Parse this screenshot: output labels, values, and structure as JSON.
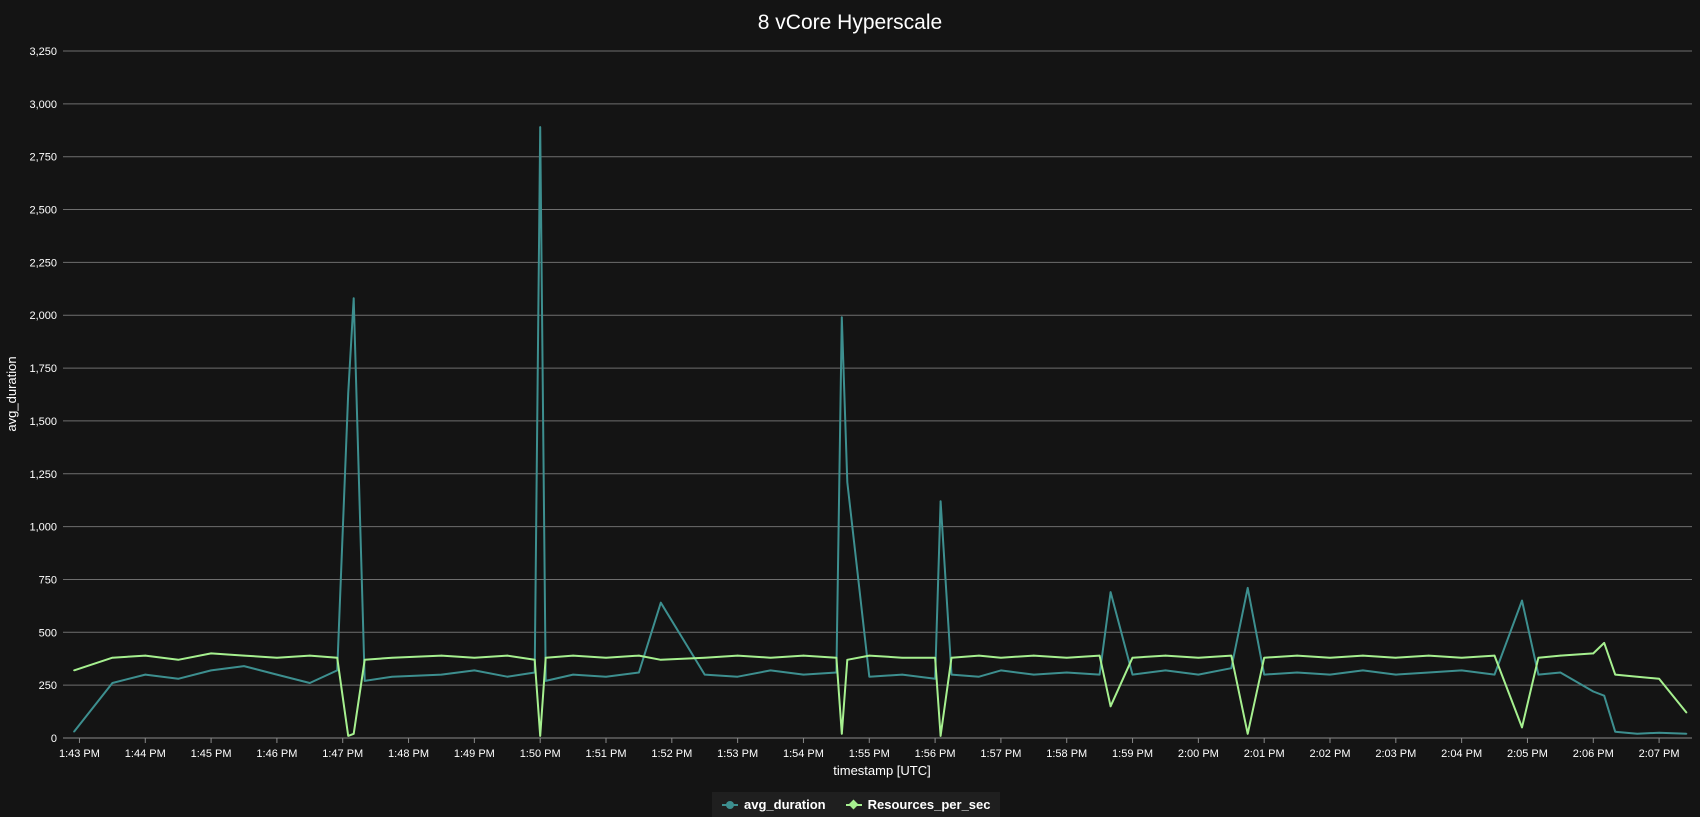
{
  "chart_data": {
    "type": "line",
    "title": "8 vCore Hyperscale",
    "xlabel": "timestamp [UTC]",
    "ylabel": "avg_duration",
    "ylim": [
      0,
      3250
    ],
    "yticks": [
      0,
      250,
      500,
      750,
      1000,
      1250,
      1500,
      1750,
      2000,
      2250,
      2500,
      2750,
      3000,
      3250
    ],
    "ytick_labels": [
      "0",
      "250",
      "500",
      "750",
      "1,000",
      "1,250",
      "1,500",
      "1,750",
      "2,000",
      "2,250",
      "2,500",
      "2,750",
      "3,000",
      "3,250"
    ],
    "xlim": [
      "1:42:45 PM",
      "2:07:30 PM"
    ],
    "xtick_labels": [
      "1:43 PM",
      "1:44 PM",
      "1:45 PM",
      "1:46 PM",
      "1:47 PM",
      "1:48 PM",
      "1:49 PM",
      "1:50 PM",
      "1:51 PM",
      "1:52 PM",
      "1:53 PM",
      "1:54 PM",
      "1:55 PM",
      "1:56 PM",
      "1:57 PM",
      "1:58 PM",
      "1:59 PM",
      "2:00 PM",
      "2:01 PM",
      "2:02 PM",
      "2:03 PM",
      "2:04 PM",
      "2:05 PM",
      "2:06 PM",
      "2:07 PM"
    ],
    "grid": true,
    "legend_position": "bottom-center",
    "x": [
      "1:42:55 PM",
      "1:43:30 PM",
      "1:44:00 PM",
      "1:44:30 PM",
      "1:45:00 PM",
      "1:45:30 PM",
      "1:46:00 PM",
      "1:46:30 PM",
      "1:46:55 PM",
      "1:47:05 PM",
      "1:47:10 PM",
      "1:47:20 PM",
      "1:47:45 PM",
      "1:48:30 PM",
      "1:49:00 PM",
      "1:49:30 PM",
      "1:49:55 PM",
      "1:50:00 PM",
      "1:50:05 PM",
      "1:50:30 PM",
      "1:51:00 PM",
      "1:51:30 PM",
      "1:51:50 PM",
      "1:52:30 PM",
      "1:53:00 PM",
      "1:53:30 PM",
      "1:54:00 PM",
      "1:54:30 PM",
      "1:54:35 PM",
      "1:54:40 PM",
      "1:55:00 PM",
      "1:55:30 PM",
      "1:56:00 PM",
      "1:56:05 PM",
      "1:56:15 PM",
      "1:56:40 PM",
      "1:57:00 PM",
      "1:57:30 PM",
      "1:58:00 PM",
      "1:58:30 PM",
      "1:58:40 PM",
      "1:59:00 PM",
      "1:59:30 PM",
      "2:00:00 PM",
      "2:00:30 PM",
      "2:00:45 PM",
      "2:01:00 PM",
      "2:01:30 PM",
      "2:02:00 PM",
      "2:02:30 PM",
      "2:03:00 PM",
      "2:03:30 PM",
      "2:04:00 PM",
      "2:04:30 PM",
      "2:04:55 PM",
      "2:05:10 PM",
      "2:05:30 PM",
      "2:06:00 PM",
      "2:06:10 PM",
      "2:06:20 PM",
      "2:06:40 PM",
      "2:07:00 PM",
      "2:07:25 PM"
    ],
    "series": [
      {
        "name": "avg_duration",
        "color": "#3d8f8f",
        "marker": "circle",
        "values": [
          30,
          260,
          300,
          280,
          320,
          340,
          300,
          260,
          320,
          1630,
          2080,
          270,
          290,
          300,
          320,
          290,
          310,
          2890,
          270,
          300,
          290,
          310,
          640,
          300,
          290,
          320,
          300,
          310,
          1990,
          1210,
          290,
          300,
          280,
          1120,
          300,
          290,
          320,
          300,
          310,
          300,
          690,
          300,
          320,
          300,
          330,
          710,
          300,
          310,
          300,
          320,
          300,
          310,
          320,
          300,
          650,
          300,
          310,
          220,
          200,
          30,
          20,
          25,
          20
        ]
      },
      {
        "name": "Resources_per_sec",
        "color": "#a6f08f",
        "marker": "diamond",
        "values": [
          320,
          380,
          390,
          370,
          400,
          390,
          380,
          390,
          380,
          10,
          20,
          370,
          380,
          390,
          380,
          390,
          370,
          10,
          380,
          390,
          380,
          390,
          370,
          380,
          390,
          380,
          390,
          380,
          20,
          370,
          390,
          380,
          380,
          10,
          380,
          390,
          380,
          390,
          380,
          390,
          150,
          380,
          390,
          380,
          390,
          20,
          380,
          390,
          380,
          390,
          380,
          390,
          380,
          390,
          50,
          380,
          390,
          400,
          450,
          300,
          290,
          280,
          120
        ]
      }
    ]
  }
}
